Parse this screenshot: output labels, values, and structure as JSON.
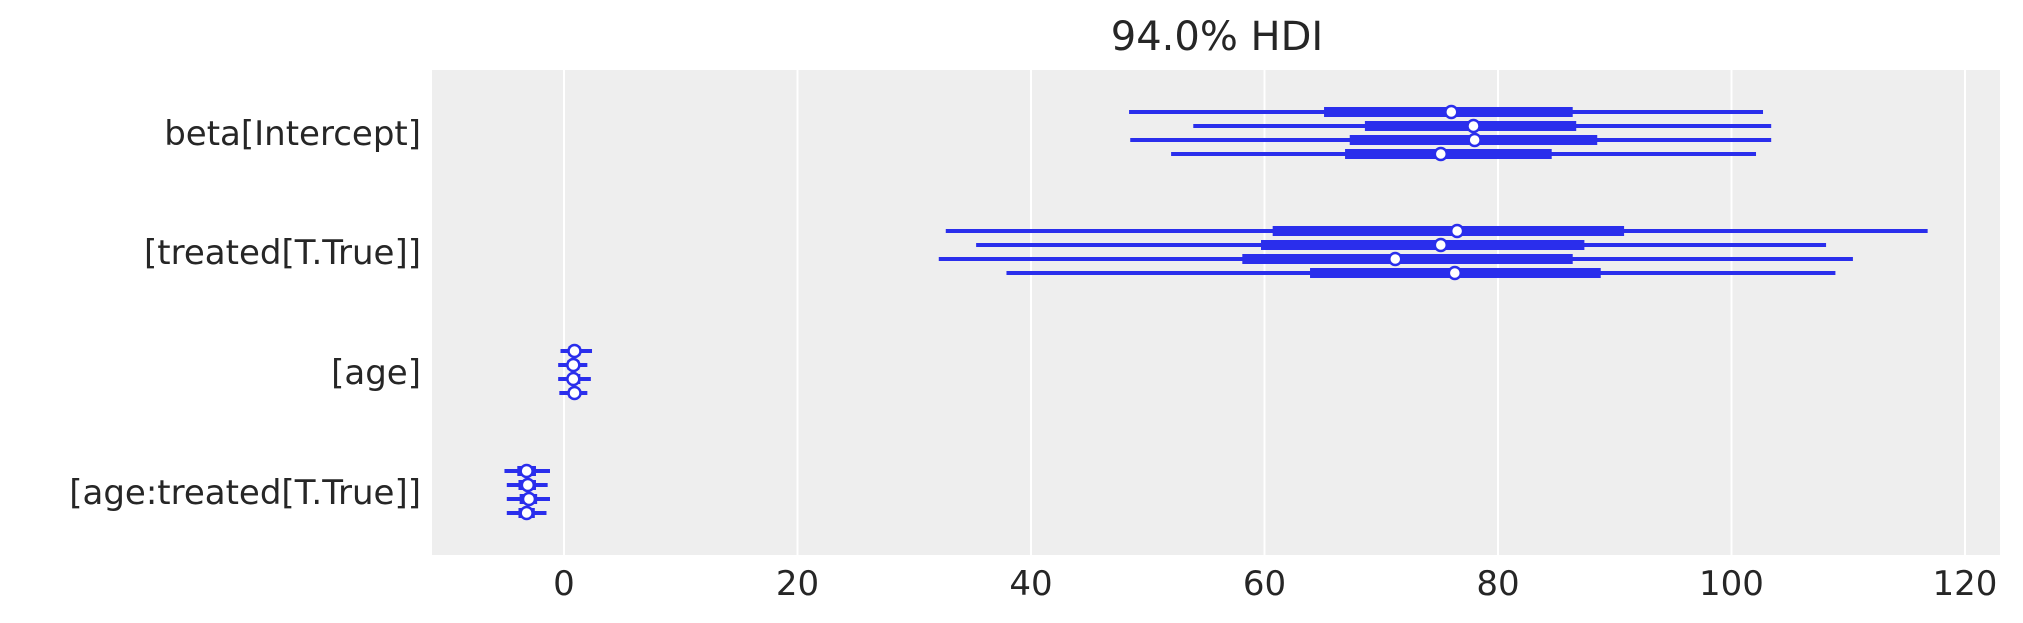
{
  "chart_data": {
    "type": "forest",
    "title": "94.0% HDI",
    "xlim": [
      -11,
      127
    ],
    "xticks": [
      0,
      20,
      40,
      60,
      80,
      100,
      120
    ],
    "grid": true,
    "colors": {
      "series": "#2a2eec",
      "background": "#eeeeee",
      "grid": "#ffffff"
    },
    "variables": [
      {
        "label": "beta[Intercept]",
        "chains": [
          {
            "hdi": [
              48.4,
              102.7
            ],
            "iqr": [
              65.1,
              86.4
            ],
            "median": 76.0
          },
          {
            "hdi": [
              53.9,
              103.4
            ],
            "iqr": [
              68.6,
              86.7
            ],
            "median": 77.9
          },
          {
            "hdi": [
              48.5,
              103.4
            ],
            "iqr": [
              67.3,
              88.5
            ],
            "median": 78.0
          },
          {
            "hdi": [
              52.0,
              102.1
            ],
            "iqr": [
              66.9,
              84.6
            ],
            "median": 75.1
          }
        ]
      },
      {
        "label": "[treated[T.True]]",
        "chains": [
          {
            "hdi": [
              32.7,
              116.8
            ],
            "iqr": [
              60.7,
              90.8
            ],
            "median": 76.5
          },
          {
            "hdi": [
              35.3,
              108.1
            ],
            "iqr": [
              59.7,
              87.4
            ],
            "median": 75.1
          },
          {
            "hdi": [
              32.1,
              110.4
            ],
            "iqr": [
              58.1,
              86.4
            ],
            "median": 71.2
          },
          {
            "hdi": [
              37.9,
              108.9
            ],
            "iqr": [
              63.9,
              88.8
            ],
            "median": 76.3
          }
        ]
      },
      {
        "label": "[age]",
        "chains": [
          {
            "hdi": [
              -0.3,
              2.4
            ],
            "iqr": [
              0.4,
              1.4
            ],
            "median": 0.9
          },
          {
            "hdi": [
              -0.5,
              2.0
            ],
            "iqr": [
              0.3,
              1.3
            ],
            "median": 0.8
          },
          {
            "hdi": [
              -0.5,
              2.3
            ],
            "iqr": [
              0.4,
              1.4
            ],
            "median": 0.8
          },
          {
            "hdi": [
              -0.4,
              2.0
            ],
            "iqr": [
              0.4,
              1.3
            ],
            "median": 0.9
          }
        ]
      },
      {
        "label": "[age:treated[T.True]]",
        "chains": [
          {
            "hdi": [
              -5.1,
              -1.2
            ],
            "iqr": [
              -4.0,
              -2.4
            ],
            "median": -3.2
          },
          {
            "hdi": [
              -4.9,
              -1.4
            ],
            "iqr": [
              -3.9,
              -2.4
            ],
            "median": -3.1
          },
          {
            "hdi": [
              -4.9,
              -1.2
            ],
            "iqr": [
              -3.8,
              -2.3
            ],
            "median": -3.0
          },
          {
            "hdi": [
              -4.9,
              -1.5
            ],
            "iqr": [
              -3.9,
              -2.5
            ],
            "median": -3.2
          }
        ]
      }
    ]
  }
}
